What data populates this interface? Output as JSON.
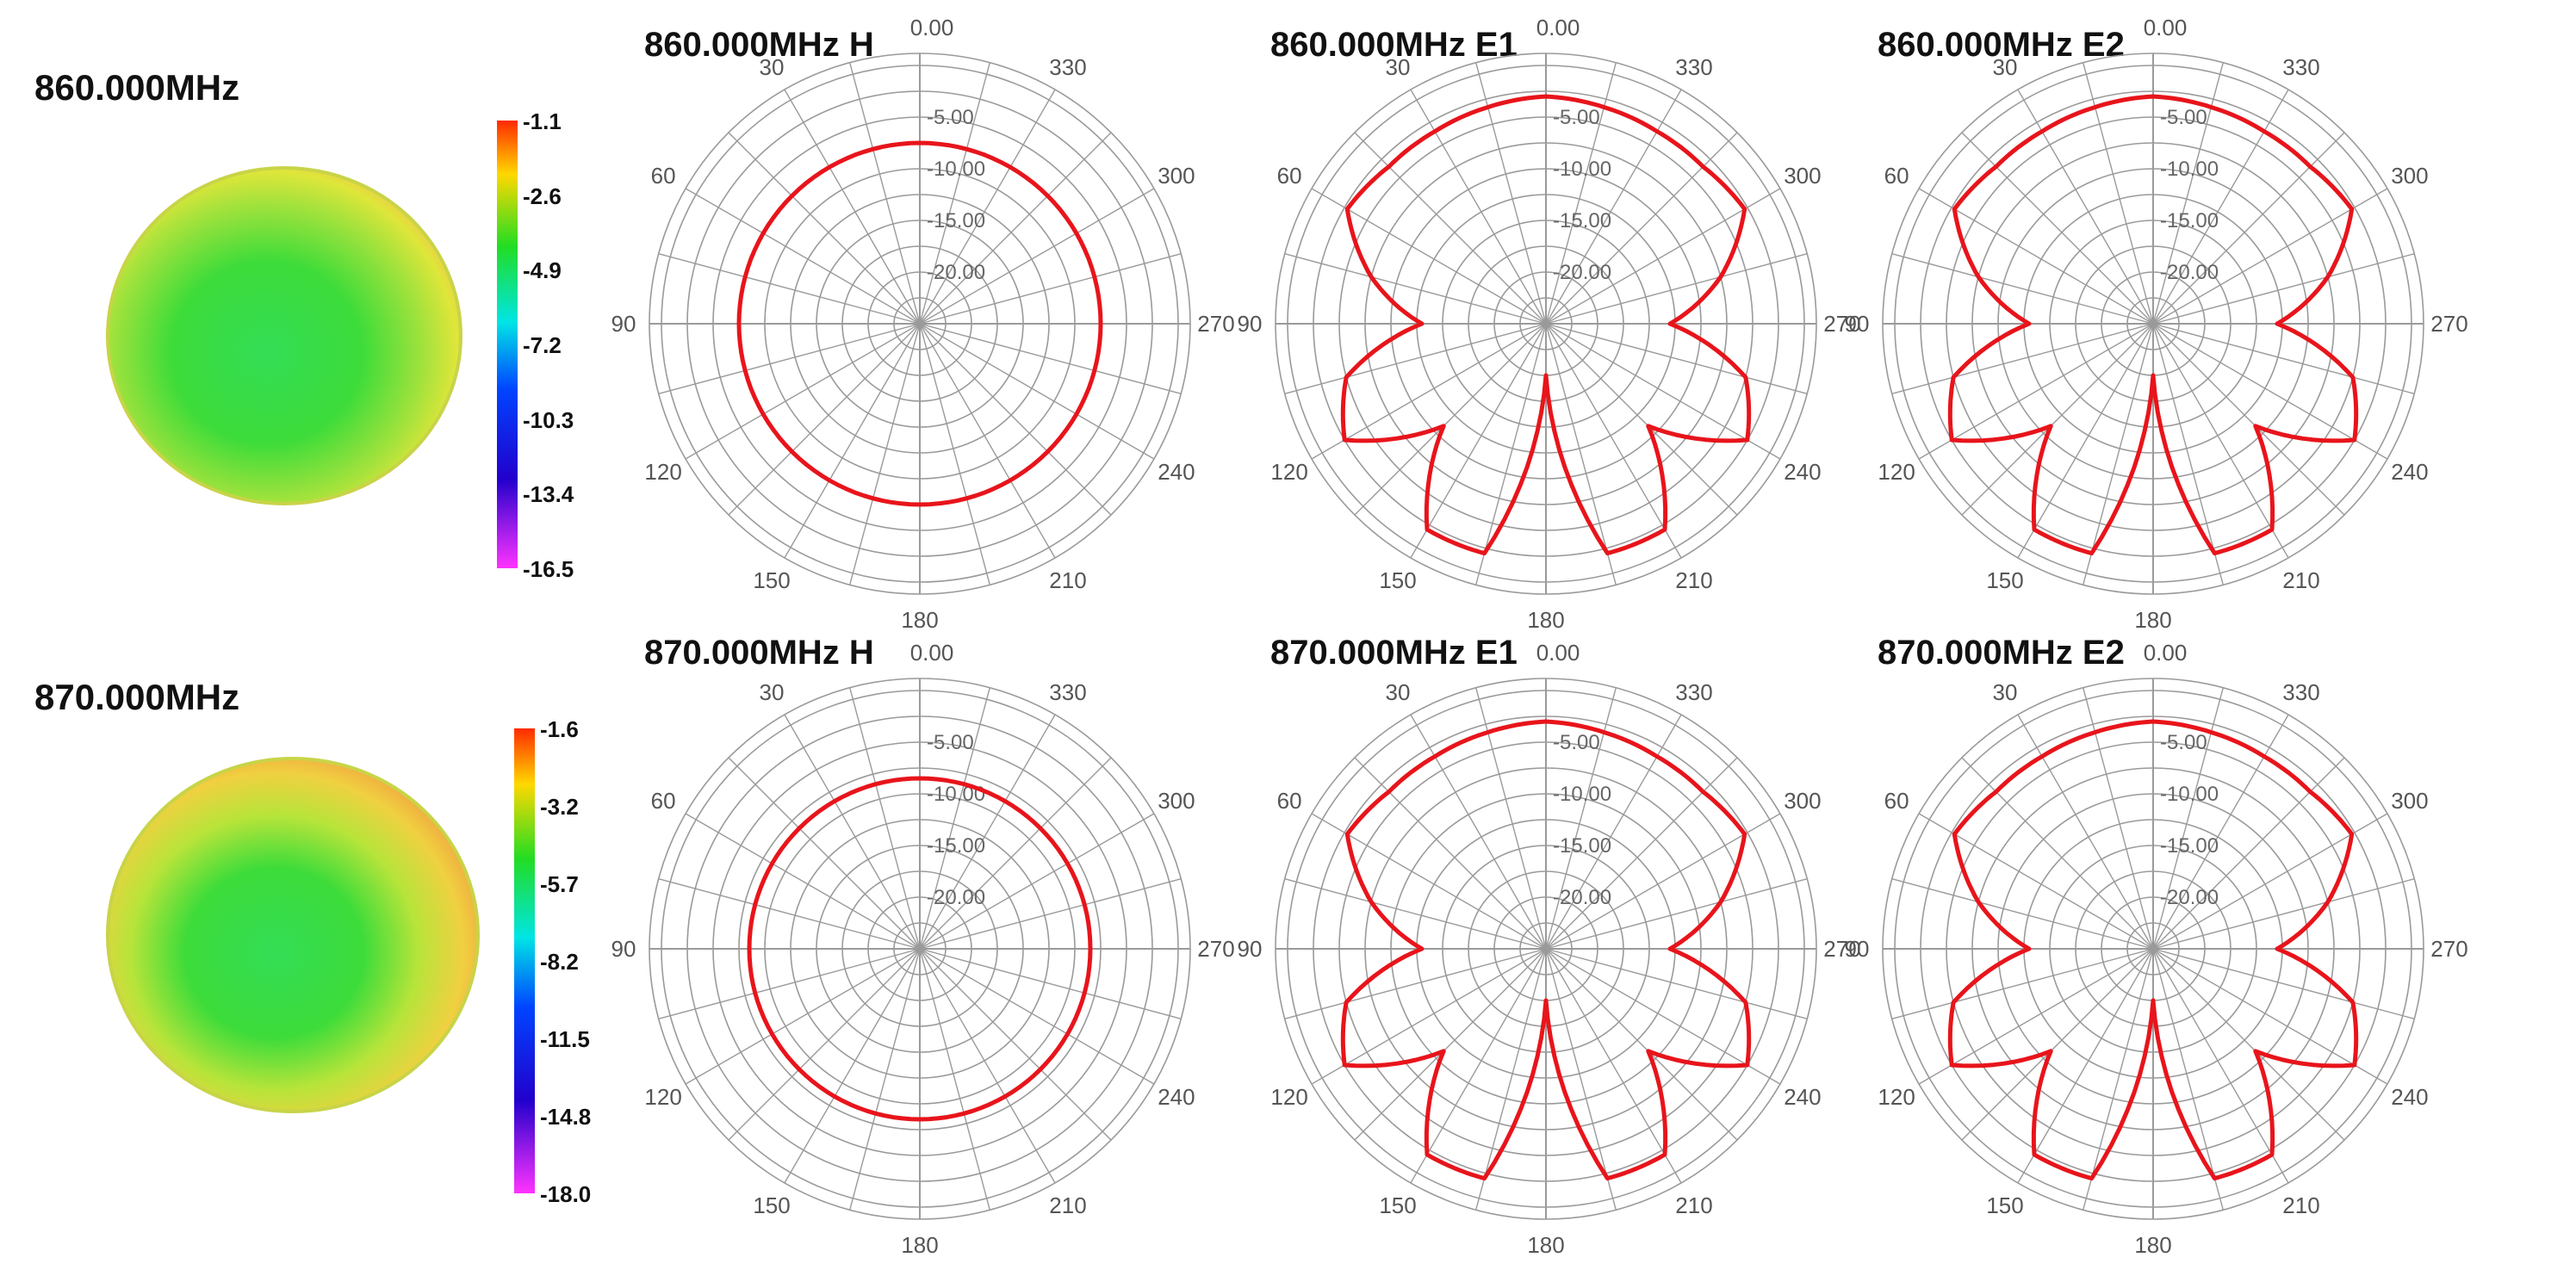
{
  "rows": [
    {
      "frequency_title": "860.000MHz",
      "colorbar_ticks": [
        "-1.1",
        "-2.6",
        "-4.9",
        "-7.2",
        "-10.3",
        "-13.4",
        "-16.5"
      ],
      "polars": [
        {
          "title": "860.000MHz H"
        },
        {
          "title": "860.000MHz E1"
        },
        {
          "title": "860.000MHz E2"
        }
      ]
    },
    {
      "frequency_title": "870.000MHz",
      "colorbar_ticks": [
        "-1.6",
        "-3.2",
        "-5.7",
        "-8.2",
        "-11.5",
        "-14.8",
        "-18.0"
      ],
      "polars": [
        {
          "title": "870.000MHz H"
        },
        {
          "title": "870.000MHz E1"
        },
        {
          "title": "870.000MHz E2"
        }
      ]
    }
  ],
  "colors": {
    "trace": "#e8141b",
    "grid": "#9a9a9a",
    "heat_green": "#3ddc3a",
    "heat_yellow": "#dfe63a",
    "heat_orange": "#f0a040"
  },
  "chart_data": [
    {
      "type": "polar",
      "title": "860.000MHz H",
      "angle_labels": [
        "0.00",
        "30",
        "60",
        "90",
        "120",
        "150",
        "180",
        "210",
        "240",
        "270",
        "300",
        "330"
      ],
      "radial_labels": [
        "-5.00",
        "-10.00",
        "-15.00",
        "-20.00"
      ],
      "radial_range": [
        -25,
        0
      ],
      "series": [
        {
          "angles": [
            0,
            30,
            60,
            90,
            120,
            150,
            180,
            210,
            240,
            270,
            300,
            330
          ],
          "values": [
            -7.5,
            -7.5,
            -7.5,
            -7.5,
            -7.5,
            -7.5,
            -7.5,
            -7.5,
            -7.5,
            -7.5,
            -7.5,
            -7.5
          ]
        }
      ]
    },
    {
      "type": "polar",
      "title": "860.000MHz E1",
      "angle_labels": [
        "0.00",
        "30",
        "60",
        "90",
        "120",
        "150",
        "180",
        "210",
        "240",
        "270",
        "300",
        "330"
      ],
      "radial_labels": [
        "-5.00",
        "-10.00",
        "-15.00",
        "-20.00"
      ],
      "radial_range": [
        -25,
        0
      ],
      "series": [
        {
          "angles": [
            0,
            15,
            30,
            45,
            60,
            75,
            90,
            105,
            120,
            135,
            150,
            165,
            180,
            195,
            210,
            225,
            240,
            255,
            270,
            285,
            300,
            315,
            330,
            345
          ],
          "values": [
            -3,
            -3.3,
            -3.5,
            -3.5,
            -2.8,
            -7.5,
            -13,
            -5,
            -2.5,
            -11,
            -2,
            -2,
            -20,
            -2,
            -2,
            -11,
            -2.5,
            -5,
            -13,
            -7.5,
            -2.8,
            -3.5,
            -3.5,
            -3.3
          ]
        }
      ]
    },
    {
      "type": "polar",
      "title": "860.000MHz E2",
      "angle_labels": [
        "0.00",
        "30",
        "60",
        "90",
        "120",
        "150",
        "180",
        "210",
        "240",
        "270",
        "300",
        "330"
      ],
      "radial_labels": [
        "-5.00",
        "-10.00",
        "-15.00",
        "-20.00"
      ],
      "radial_range": [
        -25,
        0
      ],
      "series": [
        {
          "angles": [
            0,
            15,
            30,
            45,
            60,
            75,
            90,
            105,
            120,
            135,
            150,
            165,
            180,
            195,
            210,
            225,
            240,
            255,
            270,
            285,
            300,
            315,
            330,
            345
          ],
          "values": [
            -3,
            -3.3,
            -3.5,
            -3.5,
            -2.8,
            -7.5,
            -13,
            -5,
            -2.5,
            -11,
            -2,
            -2,
            -20,
            -2,
            -2,
            -11,
            -2.5,
            -5,
            -13,
            -7.5,
            -2.8,
            -3.5,
            -3.5,
            -3.3
          ]
        }
      ]
    },
    {
      "type": "polar",
      "title": "870.000MHz H",
      "angle_labels": [
        "0.00",
        "30",
        "60",
        "90",
        "120",
        "150",
        "180",
        "210",
        "240",
        "270",
        "300",
        "330"
      ],
      "radial_labels": [
        "-5.00",
        "-10.00",
        "-15.00",
        "-20.00"
      ],
      "radial_range": [
        -25,
        0
      ],
      "series": [
        {
          "angles": [
            0,
            30,
            60,
            90,
            120,
            150,
            180,
            210,
            240,
            270,
            300,
            330
          ],
          "values": [
            -8.5,
            -8.5,
            -8.5,
            -8.5,
            -8.5,
            -8.5,
            -8.5,
            -8.5,
            -8.5,
            -8.5,
            -8.5,
            -8.5
          ]
        }
      ]
    },
    {
      "type": "polar",
      "title": "870.000MHz E1",
      "angle_labels": [
        "0.00",
        "30",
        "60",
        "90",
        "120",
        "150",
        "180",
        "210",
        "240",
        "270",
        "300",
        "330"
      ],
      "radial_labels": [
        "-5.00",
        "-10.00",
        "-15.00",
        "-20.00"
      ],
      "radial_range": [
        -25,
        0
      ],
      "series": [
        {
          "angles": [
            0,
            15,
            30,
            45,
            60,
            75,
            90,
            105,
            120,
            135,
            150,
            165,
            180,
            195,
            210,
            225,
            240,
            255,
            270,
            285,
            300,
            315,
            330,
            345
          ],
          "values": [
            -3,
            -3.3,
            -3.5,
            -3.5,
            -2.8,
            -7.5,
            -13,
            -5,
            -2.5,
            -11,
            -2,
            -2,
            -20,
            -2,
            -2,
            -11,
            -2.5,
            -5,
            -13,
            -7.5,
            -2.8,
            -3.5,
            -3.5,
            -3.3
          ]
        }
      ]
    },
    {
      "type": "polar",
      "title": "870.000MHz E2",
      "angle_labels": [
        "0.00",
        "30",
        "60",
        "90",
        "120",
        "150",
        "180",
        "210",
        "240",
        "270",
        "300",
        "330"
      ],
      "radial_labels": [
        "-5.00",
        "-10.00",
        "-15.00",
        "-20.00"
      ],
      "radial_range": [
        -25,
        0
      ],
      "series": [
        {
          "angles": [
            0,
            15,
            30,
            45,
            60,
            75,
            90,
            105,
            120,
            135,
            150,
            165,
            180,
            195,
            210,
            225,
            240,
            255,
            270,
            285,
            300,
            315,
            330,
            345
          ],
          "values": [
            -3,
            -3.3,
            -3.5,
            -3.5,
            -2.8,
            -7.5,
            -13,
            -5,
            -2.5,
            -11,
            -2,
            -2,
            -20,
            -2,
            -2,
            -11,
            -2.5,
            -5,
            -13,
            -7.5,
            -2.8,
            -3.5,
            -3.5,
            -3.3
          ]
        }
      ]
    }
  ]
}
